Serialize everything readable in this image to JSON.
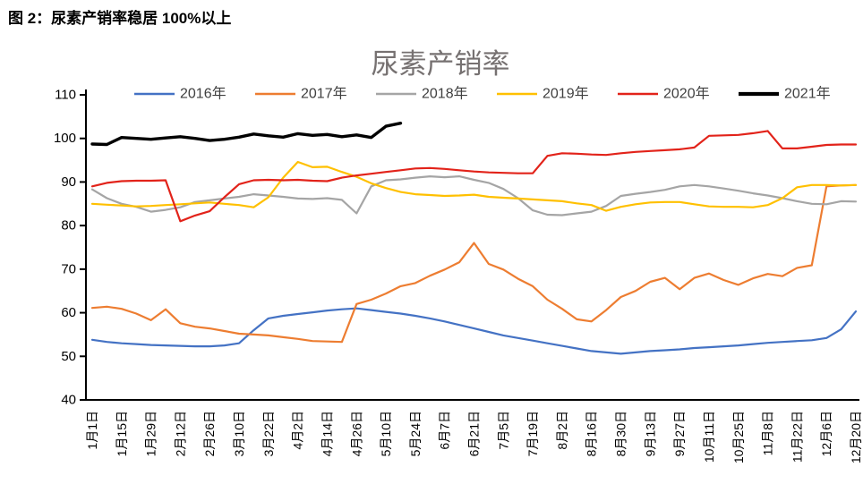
{
  "figure": {
    "label": "图 2：尿素产销率稳居 100%以上"
  },
  "chart_data": {
    "type": "line",
    "title": "尿素产销率",
    "title_color": "#767171",
    "axis_color": "#000000",
    "grid": false,
    "legend_position": "top",
    "ylim": [
      40,
      110
    ],
    "y_ticks": [
      40,
      50,
      60,
      70,
      80,
      90,
      100,
      110
    ],
    "points_per_tick_interval": 2,
    "x_tick_labels": [
      "1月1日",
      "1月15日",
      "1月29日",
      "2月12日",
      "2月26日",
      "3月10日",
      "3月22日",
      "4月2日",
      "4月14日",
      "4月26日",
      "5月10日",
      "5月24日",
      "6月7日",
      "6月21日",
      "7月5日",
      "7月19日",
      "8月2日",
      "8月16日",
      "8月30日",
      "9月13日",
      "9月27日",
      "10月11日",
      "10月25日",
      "11月8日",
      "11月22日",
      "12月6日",
      "12月20日"
    ],
    "series": [
      {
        "name": "2016年",
        "color": "#4472C4",
        "width": 2.2,
        "values": [
          53.8,
          53.3,
          53.0,
          52.8,
          52.6,
          52.5,
          52.4,
          52.3,
          52.3,
          52.5,
          53.0,
          56.0,
          58.7,
          59.3,
          59.7,
          60.1,
          60.5,
          60.8,
          61.0,
          60.6,
          60.2,
          59.8,
          59.3,
          58.7,
          58.0,
          57.2,
          56.4,
          55.6,
          54.8,
          54.2,
          53.6,
          53.0,
          52.4,
          51.8,
          51.2,
          50.9,
          50.6,
          50.9,
          51.2,
          51.4,
          51.6,
          51.9,
          52.1,
          52.3,
          52.5,
          52.8,
          53.1,
          53.3,
          53.5,
          53.7,
          54.2,
          56.2,
          60.3
        ]
      },
      {
        "name": "2017年",
        "color": "#ED7D31",
        "width": 2.2,
        "values": [
          61.1,
          61.4,
          60.9,
          59.8,
          58.3,
          60.8,
          57.6,
          56.8,
          56.4,
          55.8,
          55.2,
          55.0,
          54.8,
          54.4,
          54.0,
          53.5,
          53.4,
          53.3,
          62.0,
          63.0,
          64.4,
          66.1,
          66.8,
          68.5,
          69.9,
          71.6,
          76.0,
          71.2,
          69.9,
          67.8,
          66.1,
          63.0,
          60.9,
          58.5,
          58.0,
          60.6,
          63.6,
          65.0,
          67.1,
          68.0,
          65.4,
          68.0,
          69.0,
          67.5,
          66.4,
          67.9,
          68.9,
          68.4,
          70.3,
          70.9,
          89.0,
          89.2,
          89.3
        ]
      },
      {
        "name": "2018年",
        "color": "#A5A5A5",
        "width": 2.2,
        "values": [
          88.3,
          86.3,
          85.0,
          84.3,
          83.2,
          83.6,
          84.2,
          85.4,
          85.8,
          86.2,
          86.6,
          87.2,
          86.9,
          86.6,
          86.2,
          86.1,
          86.3,
          85.9,
          82.8,
          89.0,
          90.4,
          90.6,
          91.0,
          91.3,
          91.1,
          91.3,
          90.5,
          89.8,
          88.4,
          86.3,
          83.5,
          82.5,
          82.4,
          82.8,
          83.2,
          84.5,
          86.8,
          87.3,
          87.7,
          88.2,
          89.0,
          89.3,
          89.0,
          88.5,
          88.0,
          87.4,
          86.9,
          86.3,
          85.6,
          85.0,
          84.9,
          85.6,
          85.5
        ]
      },
      {
        "name": "2019年",
        "color": "#FFC000",
        "width": 2.2,
        "values": [
          85.0,
          84.8,
          84.6,
          84.4,
          84.5,
          84.7,
          84.9,
          85.1,
          85.3,
          85.0,
          84.7,
          84.2,
          86.5,
          91.0,
          94.6,
          93.4,
          93.5,
          92.3,
          91.2,
          89.7,
          88.6,
          87.7,
          87.2,
          87.0,
          86.8,
          86.9,
          87.1,
          86.6,
          86.4,
          86.2,
          86.0,
          85.8,
          85.6,
          85.1,
          84.7,
          83.4,
          84.3,
          84.9,
          85.3,
          85.4,
          85.4,
          84.9,
          84.4,
          84.3,
          84.3,
          84.2,
          84.7,
          86.3,
          88.8,
          89.3,
          89.3,
          89.2,
          89.3
        ]
      },
      {
        "name": "2020年",
        "color": "#E2231A",
        "width": 2.2,
        "values": [
          89.0,
          89.8,
          90.2,
          90.3,
          90.3,
          90.4,
          81.0,
          82.3,
          83.3,
          86.5,
          89.5,
          90.4,
          90.5,
          90.4,
          90.5,
          90.3,
          90.2,
          91.0,
          91.5,
          91.9,
          92.3,
          92.7,
          93.1,
          93.2,
          93.0,
          92.7,
          92.4,
          92.2,
          92.1,
          92.0,
          92.0,
          96.0,
          96.6,
          96.5,
          96.3,
          96.2,
          96.6,
          96.9,
          97.1,
          97.3,
          97.5,
          97.9,
          100.6,
          100.7,
          100.8,
          101.2,
          101.7,
          97.7,
          97.7,
          98.1,
          98.5,
          98.6,
          98.6
        ]
      },
      {
        "name": "2021年",
        "color": "#000000",
        "width": 3.4,
        "values": [
          98.7,
          98.6,
          100.2,
          100.0,
          99.8,
          100.1,
          100.4,
          100.0,
          99.5,
          99.8,
          100.3,
          101.0,
          100.6,
          100.3,
          101.1,
          100.7,
          100.9,
          100.4,
          100.8,
          100.2,
          102.8,
          103.5,
          null,
          null,
          null,
          null,
          null,
          null,
          null,
          null,
          null,
          null,
          null,
          null,
          null,
          null,
          null,
          null,
          null,
          null,
          null,
          null,
          null,
          null,
          null,
          null,
          null,
          null,
          null,
          null,
          null,
          null,
          null
        ]
      }
    ]
  }
}
